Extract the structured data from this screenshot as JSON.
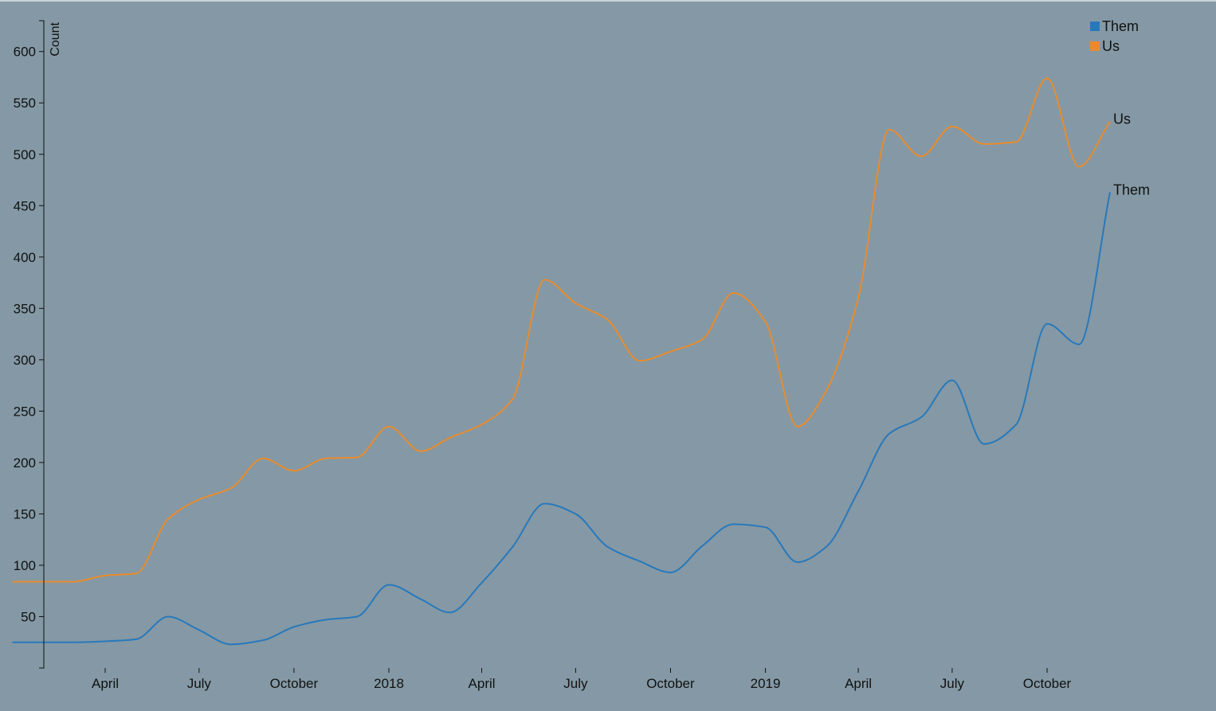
{
  "chart_data": {
    "type": "line",
    "title": "",
    "xlabel": "",
    "ylabel": "Count",
    "ylim": [
      0,
      630
    ],
    "xlim": [
      "2017-01-15",
      "2019-12-31"
    ],
    "grid": false,
    "legend": "top-right",
    "y_ticks": [
      50,
      100,
      150,
      200,
      250,
      300,
      350,
      400,
      450,
      500,
      550,
      600
    ],
    "x_ticks": [
      {
        "date": "2017-04-01",
        "label": "April"
      },
      {
        "date": "2017-07-01",
        "label": "July"
      },
      {
        "date": "2017-10-01",
        "label": "October"
      },
      {
        "date": "2018-01-01",
        "label": "2018"
      },
      {
        "date": "2018-04-01",
        "label": "April"
      },
      {
        "date": "2018-07-01",
        "label": "July"
      },
      {
        "date": "2018-10-01",
        "label": "October"
      },
      {
        "date": "2019-01-01",
        "label": "2019"
      },
      {
        "date": "2019-04-01",
        "label": "April"
      },
      {
        "date": "2019-07-01",
        "label": "July"
      },
      {
        "date": "2019-10-01",
        "label": "October"
      }
    ],
    "series": [
      {
        "name": "Them",
        "color": "#2878bc",
        "points": [
          {
            "x": "2017-01-01",
            "y": 25
          },
          {
            "x": "2017-03-01",
            "y": 25
          },
          {
            "x": "2017-04-01",
            "y": 26
          },
          {
            "x": "2017-05-01",
            "y": 28
          },
          {
            "x": "2017-06-01",
            "y": 50
          },
          {
            "x": "2017-07-01",
            "y": 37
          },
          {
            "x": "2017-08-01",
            "y": 23
          },
          {
            "x": "2017-09-01",
            "y": 27
          },
          {
            "x": "2017-10-01",
            "y": 40
          },
          {
            "x": "2017-11-01",
            "y": 47
          },
          {
            "x": "2017-12-01",
            "y": 50
          },
          {
            "x": "2018-01-01",
            "y": 81
          },
          {
            "x": "2018-02-01",
            "y": 67
          },
          {
            "x": "2018-03-01",
            "y": 54
          },
          {
            "x": "2018-04-01",
            "y": 83
          },
          {
            "x": "2018-05-01",
            "y": 118
          },
          {
            "x": "2018-06-01",
            "y": 160
          },
          {
            "x": "2018-07-01",
            "y": 150
          },
          {
            "x": "2018-08-01",
            "y": 118
          },
          {
            "x": "2018-09-01",
            "y": 104
          },
          {
            "x": "2018-10-01",
            "y": 93
          },
          {
            "x": "2018-11-01",
            "y": 119
          },
          {
            "x": "2018-12-01",
            "y": 140
          },
          {
            "x": "2019-01-01",
            "y": 137
          },
          {
            "x": "2019-02-01",
            "y": 103
          },
          {
            "x": "2019-03-01",
            "y": 118
          },
          {
            "x": "2019-04-01",
            "y": 172
          },
          {
            "x": "2019-05-01",
            "y": 228
          },
          {
            "x": "2019-06-01",
            "y": 244
          },
          {
            "x": "2019-07-01",
            "y": 280
          },
          {
            "x": "2019-08-01",
            "y": 218
          },
          {
            "x": "2019-09-01",
            "y": 237
          },
          {
            "x": "2019-10-01",
            "y": 335
          },
          {
            "x": "2019-11-01",
            "y": 315
          },
          {
            "x": "2019-12-01",
            "y": 463
          }
        ]
      },
      {
        "name": "Us",
        "color": "#e98b2d",
        "points": [
          {
            "x": "2017-01-01",
            "y": 84
          },
          {
            "x": "2017-03-01",
            "y": 84
          },
          {
            "x": "2017-04-01",
            "y": 90
          },
          {
            "x": "2017-05-01",
            "y": 92
          },
          {
            "x": "2017-06-01",
            "y": 145
          },
          {
            "x": "2017-07-01",
            "y": 164
          },
          {
            "x": "2017-08-01",
            "y": 175
          },
          {
            "x": "2017-09-01",
            "y": 204
          },
          {
            "x": "2017-10-01",
            "y": 192
          },
          {
            "x": "2017-11-01",
            "y": 204
          },
          {
            "x": "2017-12-01",
            "y": 205
          },
          {
            "x": "2018-01-01",
            "y": 235
          },
          {
            "x": "2018-02-01",
            "y": 211
          },
          {
            "x": "2018-03-01",
            "y": 224
          },
          {
            "x": "2018-04-01",
            "y": 237
          },
          {
            "x": "2018-05-01",
            "y": 262
          },
          {
            "x": "2018-06-01",
            "y": 378
          },
          {
            "x": "2018-07-01",
            "y": 355
          },
          {
            "x": "2018-08-01",
            "y": 339
          },
          {
            "x": "2018-09-01",
            "y": 299
          },
          {
            "x": "2018-10-01",
            "y": 308
          },
          {
            "x": "2018-11-01",
            "y": 320
          },
          {
            "x": "2018-12-01",
            "y": 365
          },
          {
            "x": "2019-01-01",
            "y": 337
          },
          {
            "x": "2019-02-01",
            "y": 235
          },
          {
            "x": "2019-03-01",
            "y": 270
          },
          {
            "x": "2019-04-01",
            "y": 360
          },
          {
            "x": "2019-05-01",
            "y": 524
          },
          {
            "x": "2019-06-01",
            "y": 498
          },
          {
            "x": "2019-07-01",
            "y": 527
          },
          {
            "x": "2019-08-01",
            "y": 510
          },
          {
            "x": "2019-09-01",
            "y": 512
          },
          {
            "x": "2019-10-01",
            "y": 574
          },
          {
            "x": "2019-11-01",
            "y": 488
          },
          {
            "x": "2019-12-01",
            "y": 532
          }
        ]
      }
    ]
  }
}
